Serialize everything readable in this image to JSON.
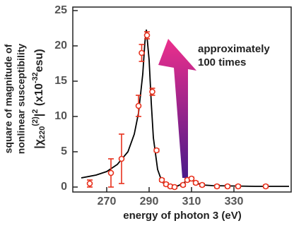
{
  "chart_data": {
    "type": "scatter",
    "xlabel": "energy of photon 3 (eV)",
    "ylabel": [
      "square of magnitude of",
      "nonlinear susceptibility"
    ],
    "ylabel_math": [
      "|χ",
      "220",
      "(2)",
      "|",
      "2",
      " (x10",
      "-32",
      "esu)"
    ],
    "annotation": [
      "approximately",
      "100 times"
    ],
    "xlim": [
      254,
      357
    ],
    "xticks": [
      270,
      290,
      310,
      330
    ],
    "ylim": [
      -0.7,
      25.5
    ],
    "yticks": [
      0,
      5,
      10,
      15,
      20,
      25
    ],
    "fit": {
      "color": "#000000",
      "x": [
        258,
        265,
        270,
        275,
        280,
        283,
        285,
        287,
        288,
        288.7,
        290,
        291,
        292,
        294,
        296,
        298,
        300,
        303,
        306,
        308,
        310,
        312,
        315,
        320,
        330,
        340,
        356
      ],
      "values": [
        1.3,
        1.7,
        2.2,
        3.2,
        5.0,
        7.5,
        10.5,
        16,
        20.5,
        22.3,
        18,
        12,
        7,
        2.5,
        0.8,
        0.2,
        0.0,
        0.1,
        0.5,
        1.0,
        1.0,
        0.6,
        0.3,
        0.2,
        0.15,
        0.1,
        0.1
      ]
    },
    "points": {
      "color": "#e8321e",
      "x": [
        262,
        272,
        277,
        285,
        286.5,
        289,
        291.5,
        293.5,
        296,
        298,
        300,
        302,
        306,
        308,
        310,
        312,
        315,
        322,
        327,
        332,
        345
      ],
      "values": [
        0.5,
        2.0,
        4.0,
        11.5,
        19.0,
        21.5,
        13.5,
        5.2,
        1.0,
        0.4,
        0.1,
        0.0,
        0.3,
        1.0,
        1.2,
        0.6,
        0.3,
        0.1,
        0.1,
        0.1,
        0.1
      ],
      "errors": [
        0.5,
        2.0,
        3.5,
        1.5,
        1.2,
        0.5,
        0.5,
        0.2,
        0.2,
        0.2,
        0.2,
        0.2,
        0.2,
        0.2,
        0.2,
        0.2,
        0.2,
        0.2,
        0.2,
        0.2,
        0.2
      ]
    }
  }
}
